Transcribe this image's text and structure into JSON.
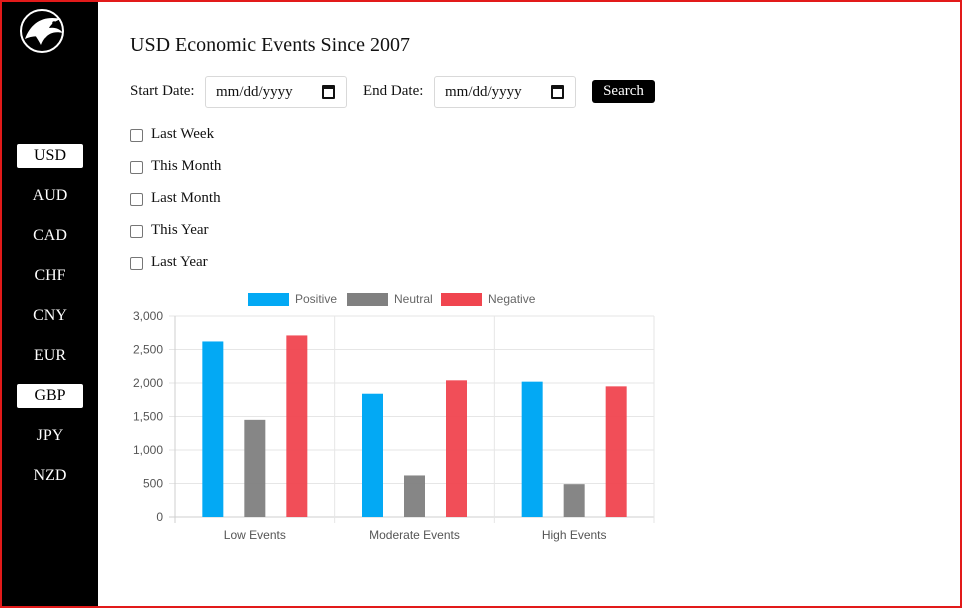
{
  "sidebar": {
    "items": [
      {
        "label": "USD",
        "active": true
      },
      {
        "label": "AUD",
        "active": false
      },
      {
        "label": "CAD",
        "active": false
      },
      {
        "label": "CHF",
        "active": false
      },
      {
        "label": "CNY",
        "active": false
      },
      {
        "label": "EUR",
        "active": false
      },
      {
        "label": "GBP",
        "active": true
      },
      {
        "label": "JPY",
        "active": false
      },
      {
        "label": "NZD",
        "active": false
      }
    ]
  },
  "main": {
    "title": "USD Economic Events Since 2007",
    "start_label": "Start Date:",
    "start_placeholder": "mm/dd/yyyy",
    "end_label": "End Date:",
    "end_placeholder": "mm/dd/yyyy",
    "search_label": "Search",
    "filters": [
      "Last Week",
      "This Month",
      "Last Month",
      "This Year",
      "Last Year"
    ]
  },
  "colors": {
    "positive": "#03a9f4",
    "neutral": "#808080",
    "negative": "#f0454f",
    "frame": "#e21a1a"
  },
  "chart_data": {
    "type": "bar",
    "categories": [
      "Low Events",
      "Moderate Events",
      "High Events"
    ],
    "series": [
      {
        "name": "Positive",
        "values": [
          2620,
          1840,
          2020
        ]
      },
      {
        "name": "Neutral",
        "values": [
          1450,
          620,
          490
        ]
      },
      {
        "name": "Negative",
        "values": [
          2710,
          2040,
          1950
        ]
      }
    ],
    "ylim": [
      0,
      3000
    ],
    "yticks": [
      "3,000",
      "2,500",
      "2,000",
      "1,500",
      "1,000",
      "500",
      "0"
    ],
    "grid": true,
    "legend": "top"
  }
}
